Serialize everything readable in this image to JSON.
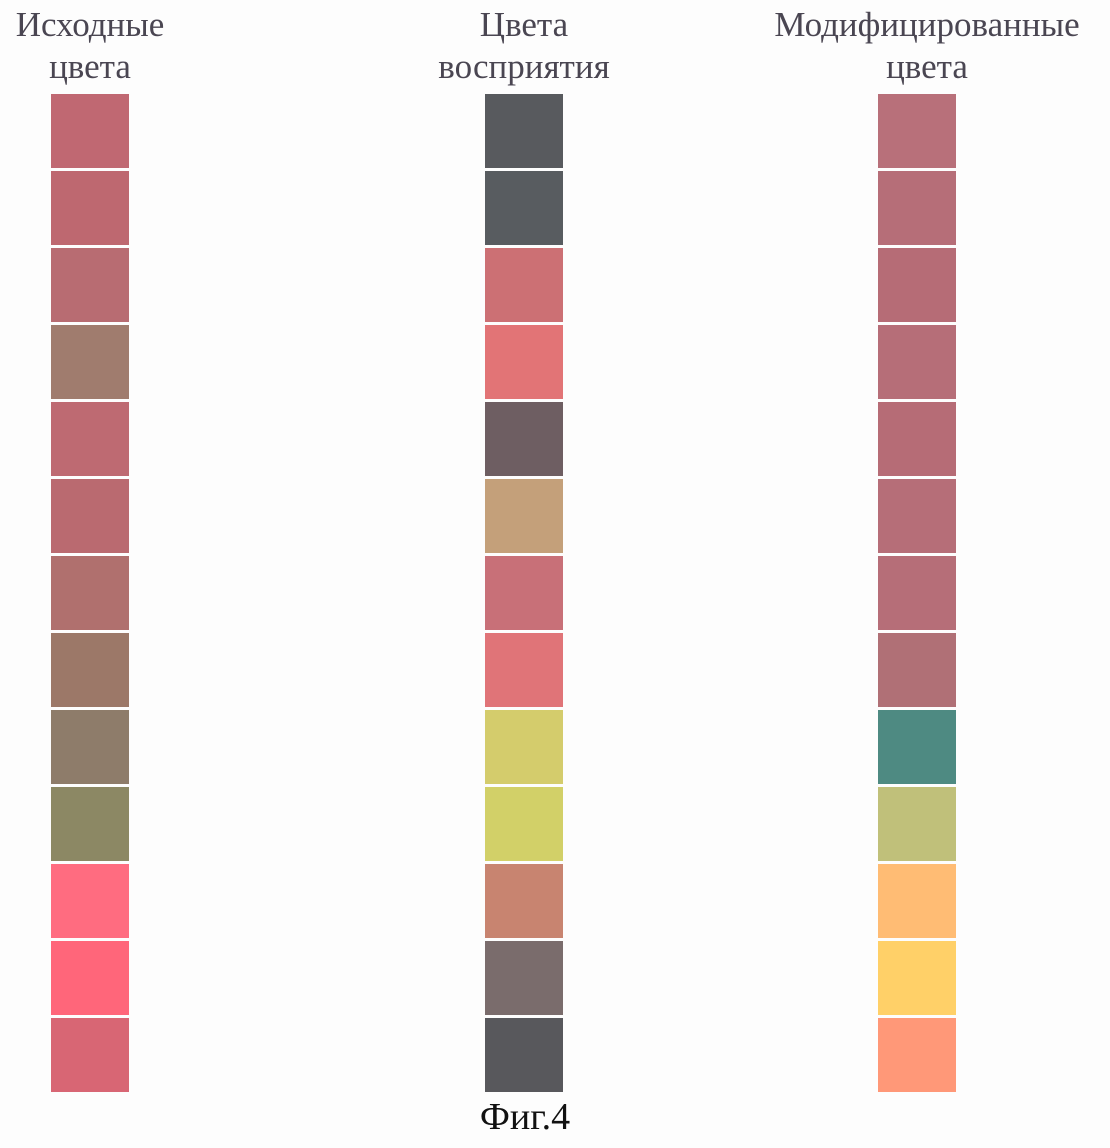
{
  "columns": [
    {
      "title_line1": "Исходные",
      "title_line2": "цвета",
      "swatches": [
        "#c06872",
        "#be6870",
        "#b86c72",
        "#a07c6e",
        "#be6a72",
        "#ba6a70",
        "#b0706e",
        "#9c7868",
        "#8e7c6a",
        "#8c8864",
        "#ff6c80",
        "#ff667a",
        "#d86674"
      ]
    },
    {
      "title_line1": "Цвета",
      "title_line2": "восприятия",
      "swatches": [
        "#585a5e",
        "#585c60",
        "#cc7074",
        "#e27476",
        "#6e5e62",
        "#c4a07a",
        "#c87078",
        "#e07478",
        "#d4cc6c",
        "#d2d068",
        "#c88470",
        "#7a6c6c",
        "#58585c"
      ]
    },
    {
      "title_line1": "Модифицированные",
      "title_line2": "цвета",
      "swatches": [
        "#b8707a",
        "#b66e78",
        "#b66c76",
        "#b66e78",
        "#b66c76",
        "#b66e78",
        "#b66e78",
        "#b07076",
        "#4e8a82",
        "#c0c07a",
        "#ffbc74",
        "#ffd068",
        "#ff9878"
      ]
    }
  ],
  "caption": "Фиг.4"
}
